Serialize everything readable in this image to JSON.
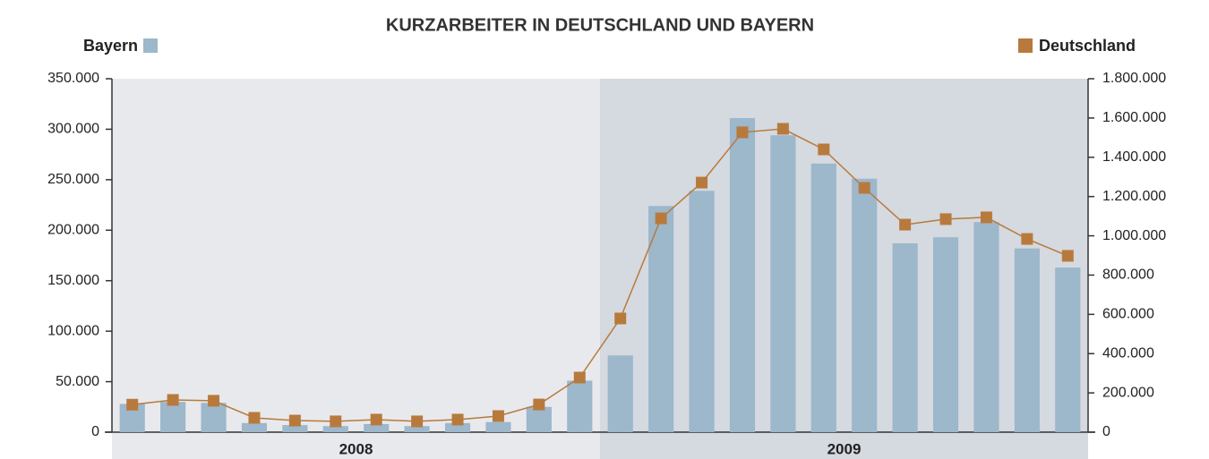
{
  "chart_data": {
    "type": "bar-line",
    "title": "KURZARBEITER IN DEUTSCHLAND UND BAYERN",
    "categories": [
      null,
      null,
      null,
      null,
      null,
      null,
      null,
      null,
      null,
      null,
      null,
      null,
      null,
      null,
      null,
      null,
      null,
      null,
      null,
      null,
      null,
      null,
      null,
      null
    ],
    "groups": [
      {
        "label": "2008",
        "count": 12,
        "color": "#e8e9ed"
      },
      {
        "label": "2009",
        "count": 12,
        "color": "#d5d9e0"
      }
    ],
    "series": [
      {
        "name": "Bayern",
        "type": "bar",
        "color": "#9db7cb",
        "axis": "y",
        "values": [
          28000,
          30000,
          29000,
          9000,
          7000,
          6000,
          8000,
          6000,
          9000,
          10000,
          25000,
          51000,
          76000,
          224000,
          239000,
          311000,
          294000,
          266000,
          251000,
          187000,
          193000,
          208000,
          182000,
          163000
        ]
      },
      {
        "name": "Deutschland",
        "type": "line",
        "color": "#b87a3c",
        "axis": "y2",
        "values": [
          140000,
          164000,
          160000,
          73000,
          59000,
          55000,
          64000,
          55000,
          64000,
          82000,
          141000,
          278000,
          579000,
          1089000,
          1271000,
          1527000,
          1545000,
          1440000,
          1244000,
          1057000,
          1085000,
          1094000,
          984000,
          898000
        ]
      }
    ],
    "ylim": [
      0,
      350000
    ],
    "yticks": [
      0,
      {
        "value": 50000,
        "label": "50.000"
      },
      {
        "value": 100000,
        "label": "100.000"
      },
      {
        "value": 150000,
        "label": "150.000"
      },
      {
        "value": 200000,
        "label": "200.000"
      },
      {
        "value": 250000,
        "label": "250.000"
      },
      {
        "value": 300000,
        "label": "300.000"
      },
      {
        "value": 350000,
        "label": "350.000"
      }
    ],
    "y2lim": [
      0,
      1800000
    ],
    "y2ticks": [
      0,
      {
        "value": 200000,
        "label": "200.000"
      },
      {
        "value": 400000,
        "label": "400.000"
      },
      {
        "value": 600000,
        "label": "600.000"
      },
      {
        "value": 800000,
        "label": "800.000"
      },
      {
        "value": 1000000,
        "label": "1.000.000"
      },
      {
        "value": 1200000,
        "label": "1.200.000"
      },
      {
        "value": 1400000,
        "label": "1.400.000"
      },
      {
        "value": 1600000,
        "label": "1.600.000"
      },
      {
        "value": 1800000,
        "label": "1.800.000"
      }
    ]
  }
}
